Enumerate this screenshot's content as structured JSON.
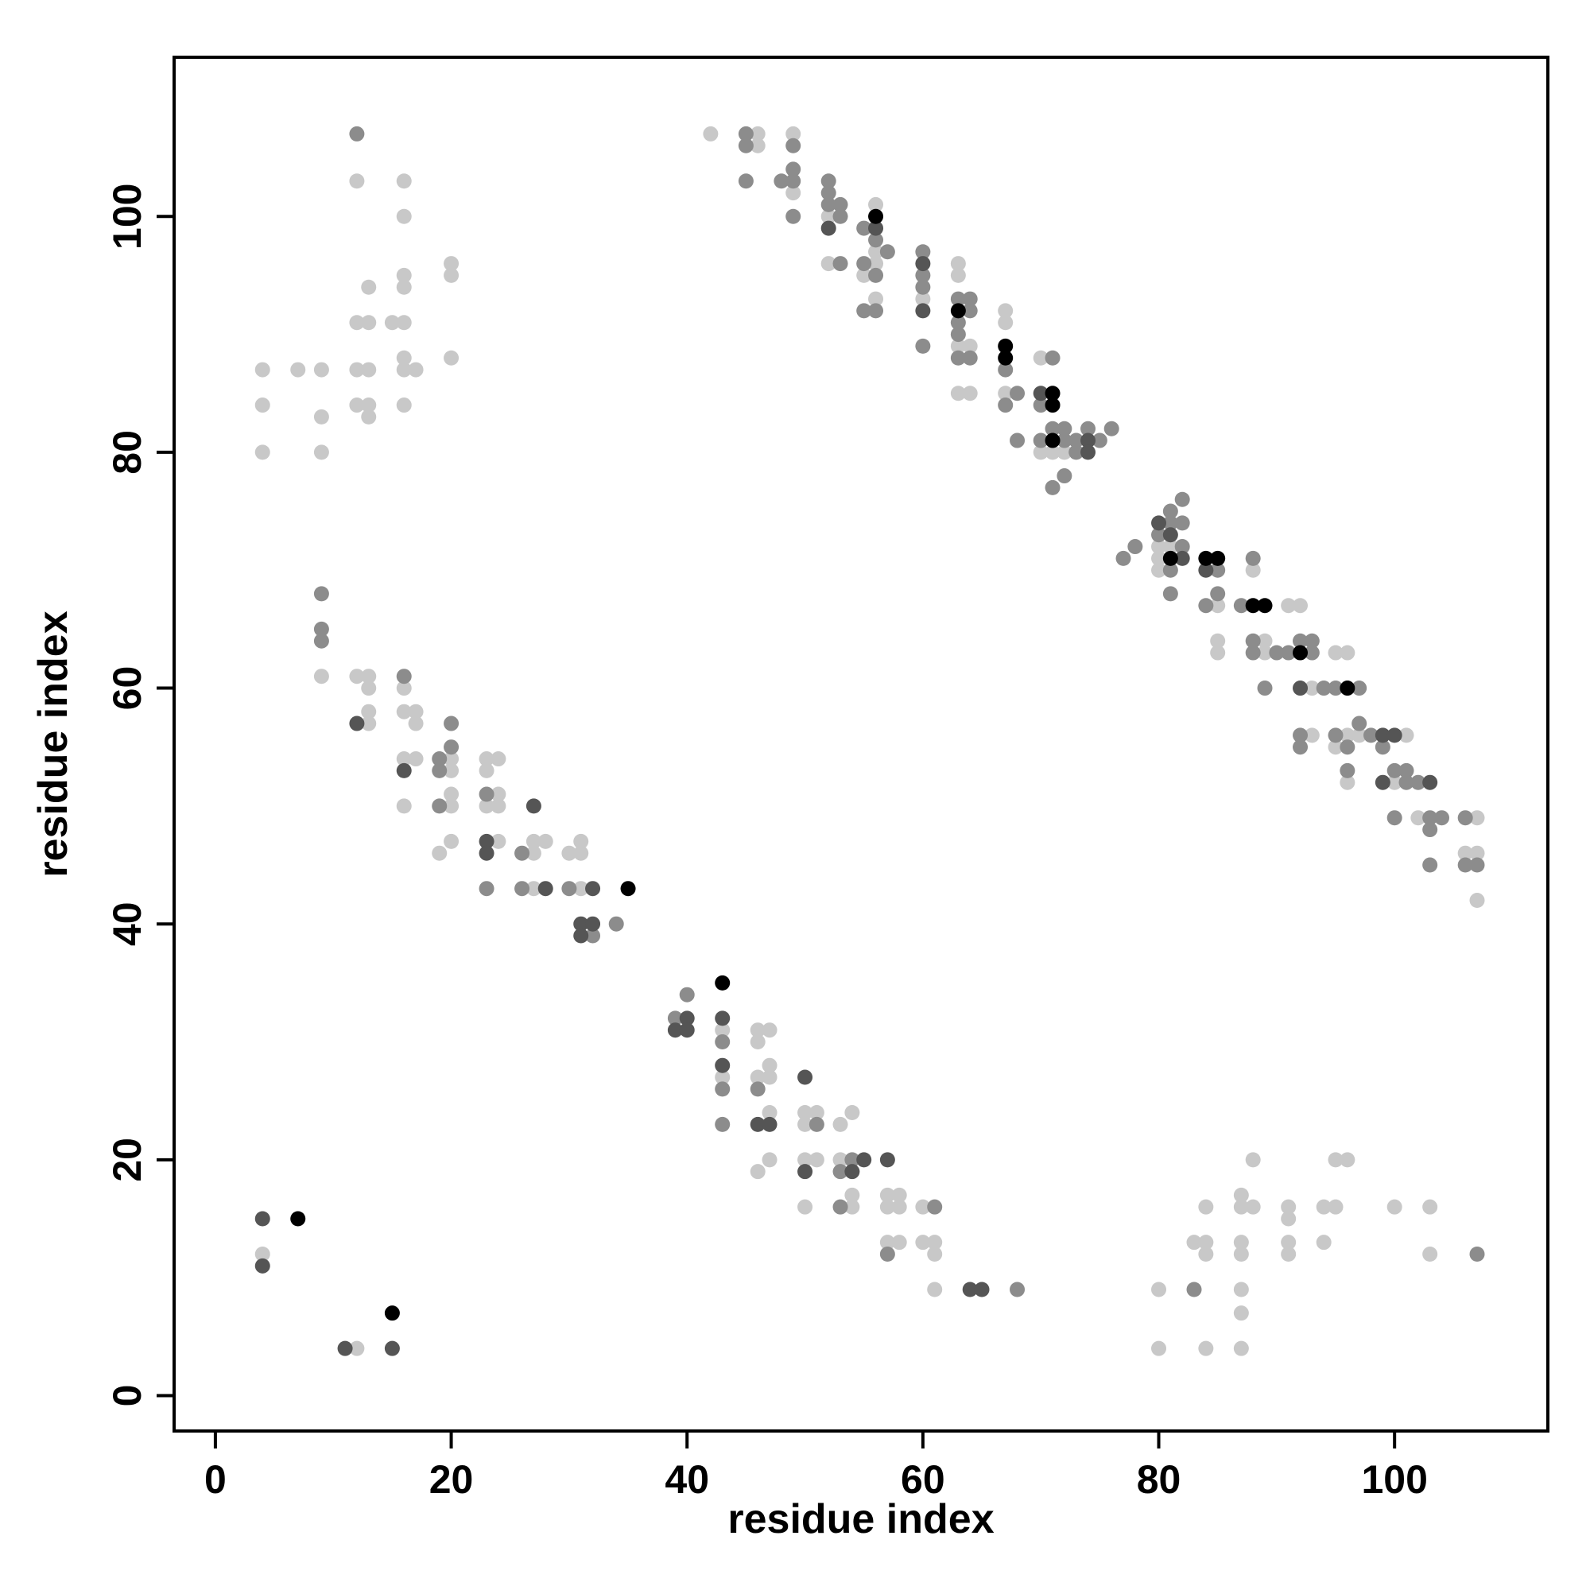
{
  "chart_data": {
    "type": "scatter",
    "title": "",
    "xlabel": "residue index",
    "ylabel": "residue index",
    "xlim": [
      -3.5,
      113
    ],
    "ylim": [
      -3,
      113.5
    ],
    "x_ticks": [
      0,
      20,
      40,
      60,
      80,
      100
    ],
    "y_ticks": [
      0,
      20,
      40,
      60,
      80,
      100
    ],
    "grid": false,
    "legend": "none",
    "point_colors": {
      "1": "#c8c8c8",
      "2": "#8c8c8c",
      "3": "#555555",
      "4": "#000000"
    },
    "points": [
      [
        4,
        87,
        1
      ],
      [
        4,
        84,
        1
      ],
      [
        4,
        80,
        1
      ],
      [
        7,
        87,
        1
      ],
      [
        9,
        87,
        1
      ],
      [
        9,
        83,
        1
      ],
      [
        9,
        80,
        1
      ],
      [
        12,
        107,
        2
      ],
      [
        12,
        103,
        1
      ],
      [
        12,
        91,
        1
      ],
      [
        12,
        87,
        1
      ],
      [
        12,
        84,
        1
      ],
      [
        13,
        94,
        1
      ],
      [
        13,
        91,
        1
      ],
      [
        13,
        87,
        1
      ],
      [
        13,
        84,
        1
      ],
      [
        13,
        83,
        1
      ],
      [
        15,
        91,
        1
      ],
      [
        16,
        103,
        1
      ],
      [
        16,
        100,
        1
      ],
      [
        16,
        95,
        1
      ],
      [
        16,
        94,
        1
      ],
      [
        16,
        91,
        1
      ],
      [
        16,
        88,
        1
      ],
      [
        16,
        87,
        1
      ],
      [
        16,
        84,
        1
      ],
      [
        17,
        87,
        1
      ],
      [
        20,
        96,
        1
      ],
      [
        20,
        95,
        1
      ],
      [
        20,
        88,
        1
      ],
      [
        9,
        68,
        2
      ],
      [
        9,
        65,
        2
      ],
      [
        9,
        64,
        2
      ],
      [
        9,
        61,
        1
      ],
      [
        12,
        61,
        1
      ],
      [
        12,
        57,
        3
      ],
      [
        13,
        61,
        1
      ],
      [
        13,
        60,
        1
      ],
      [
        13,
        58,
        1
      ],
      [
        13,
        57,
        1
      ],
      [
        16,
        61,
        2
      ],
      [
        16,
        60,
        1
      ],
      [
        16,
        58,
        1
      ],
      [
        16,
        54,
        1
      ],
      [
        16,
        53,
        3
      ],
      [
        16,
        50,
        1
      ],
      [
        17,
        58,
        1
      ],
      [
        17,
        57,
        1
      ],
      [
        17,
        54,
        1
      ],
      [
        19,
        54,
        2
      ],
      [
        19,
        53,
        2
      ],
      [
        19,
        50,
        2
      ],
      [
        19,
        46,
        1
      ],
      [
        20,
        57,
        2
      ],
      [
        20,
        55,
        2
      ],
      [
        20,
        54,
        1
      ],
      [
        20,
        53,
        1
      ],
      [
        20,
        51,
        1
      ],
      [
        20,
        50,
        1
      ],
      [
        20,
        47,
        1
      ],
      [
        23,
        54,
        1
      ],
      [
        23,
        53,
        1
      ],
      [
        23,
        51,
        2
      ],
      [
        23,
        50,
        1
      ],
      [
        23,
        47,
        3
      ],
      [
        23,
        46,
        3
      ],
      [
        23,
        43,
        2
      ],
      [
        24,
        54,
        1
      ],
      [
        24,
        51,
        1
      ],
      [
        24,
        50,
        1
      ],
      [
        24,
        47,
        1
      ],
      [
        26,
        46,
        2
      ],
      [
        26,
        43,
        2
      ],
      [
        27,
        50,
        3
      ],
      [
        27,
        47,
        1
      ],
      [
        27,
        46,
        1
      ],
      [
        27,
        43,
        1
      ],
      [
        28,
        47,
        1
      ],
      [
        28,
        43,
        3
      ],
      [
        30,
        46,
        1
      ],
      [
        30,
        43,
        2
      ],
      [
        31,
        47,
        1
      ],
      [
        31,
        46,
        1
      ],
      [
        31,
        43,
        1
      ],
      [
        31,
        40,
        3
      ],
      [
        31,
        39,
        3
      ],
      [
        32,
        43,
        3
      ],
      [
        32,
        40,
        3
      ],
      [
        32,
        39,
        2
      ],
      [
        34,
        40,
        2
      ],
      [
        35,
        43,
        4
      ],
      [
        39,
        32,
        2
      ],
      [
        39,
        31,
        3
      ],
      [
        40,
        34,
        2
      ],
      [
        40,
        32,
        3
      ],
      [
        40,
        31,
        3
      ],
      [
        43,
        35,
        4
      ],
      [
        43,
        32,
        3
      ],
      [
        43,
        31,
        1
      ],
      [
        43,
        30,
        2
      ],
      [
        43,
        28,
        3
      ],
      [
        43,
        27,
        1
      ],
      [
        43,
        26,
        2
      ],
      [
        43,
        23,
        2
      ],
      [
        46,
        31,
        1
      ],
      [
        46,
        30,
        1
      ],
      [
        46,
        27,
        1
      ],
      [
        46,
        26,
        2
      ],
      [
        46,
        23,
        3
      ],
      [
        46,
        19,
        1
      ],
      [
        47,
        31,
        1
      ],
      [
        47,
        28,
        1
      ],
      [
        47,
        27,
        1
      ],
      [
        47,
        24,
        1
      ],
      [
        47,
        23,
        3
      ],
      [
        47,
        20,
        1
      ],
      [
        50,
        27,
        3
      ],
      [
        50,
        24,
        1
      ],
      [
        50,
        23,
        1
      ],
      [
        50,
        20,
        1
      ],
      [
        50,
        19,
        3
      ],
      [
        50,
        16,
        1
      ],
      [
        51,
        24,
        1
      ],
      [
        51,
        23,
        2
      ],
      [
        51,
        20,
        1
      ],
      [
        53,
        23,
        1
      ],
      [
        53,
        20,
        1
      ],
      [
        53,
        19,
        2
      ],
      [
        53,
        16,
        2
      ],
      [
        54,
        24,
        1
      ],
      [
        54,
        20,
        2
      ],
      [
        54,
        19,
        3
      ],
      [
        54,
        17,
        1
      ],
      [
        54,
        16,
        1
      ],
      [
        55,
        20,
        3
      ],
      [
        57,
        20,
        3
      ],
      [
        57,
        17,
        1
      ],
      [
        57,
        16,
        1
      ],
      [
        57,
        13,
        1
      ],
      [
        57,
        12,
        2
      ],
      [
        58,
        17,
        1
      ],
      [
        58,
        16,
        1
      ],
      [
        58,
        13,
        1
      ],
      [
        60,
        16,
        1
      ],
      [
        60,
        13,
        1
      ],
      [
        61,
        16,
        2
      ],
      [
        61,
        13,
        1
      ],
      [
        61,
        12,
        1
      ],
      [
        61,
        9,
        1
      ],
      [
        64,
        9,
        3
      ],
      [
        65,
        9,
        3
      ],
      [
        68,
        9,
        2
      ],
      [
        4,
        15,
        3
      ],
      [
        4,
        12,
        1
      ],
      [
        4,
        11,
        3
      ],
      [
        7,
        15,
        4
      ],
      [
        11,
        4,
        3
      ],
      [
        12,
        4,
        1
      ],
      [
        15,
        7,
        4
      ],
      [
        15,
        4,
        3
      ],
      [
        80,
        9,
        1
      ],
      [
        80,
        4,
        1
      ],
      [
        83,
        13,
        1
      ],
      [
        83,
        9,
        2
      ],
      [
        84,
        16,
        1
      ],
      [
        84,
        13,
        1
      ],
      [
        84,
        12,
        1
      ],
      [
        84,
        4,
        1
      ],
      [
        87,
        17,
        1
      ],
      [
        87,
        16,
        1
      ],
      [
        87,
        13,
        1
      ],
      [
        87,
        12,
        1
      ],
      [
        87,
        9,
        1
      ],
      [
        87,
        7,
        1
      ],
      [
        87,
        4,
        1
      ],
      [
        88,
        20,
        1
      ],
      [
        88,
        16,
        1
      ],
      [
        91,
        16,
        1
      ],
      [
        91,
        15,
        1
      ],
      [
        91,
        13,
        1
      ],
      [
        91,
        12,
        1
      ],
      [
        94,
        16,
        1
      ],
      [
        94,
        13,
        1
      ],
      [
        95,
        20,
        1
      ],
      [
        95,
        16,
        1
      ],
      [
        96,
        20,
        1
      ],
      [
        100,
        16,
        1
      ],
      [
        103,
        16,
        1
      ],
      [
        103,
        12,
        1
      ],
      [
        107,
        12,
        2
      ],
      [
        42,
        107,
        1
      ],
      [
        45,
        107,
        2
      ],
      [
        45,
        106,
        2
      ],
      [
        45,
        103,
        2
      ],
      [
        46,
        107,
        1
      ],
      [
        46,
        106,
        1
      ],
      [
        48,
        103,
        2
      ],
      [
        49,
        107,
        1
      ],
      [
        49,
        106,
        2
      ],
      [
        49,
        104,
        2
      ],
      [
        49,
        103,
        2
      ],
      [
        49,
        102,
        1
      ],
      [
        49,
        100,
        2
      ],
      [
        52,
        103,
        2
      ],
      [
        52,
        102,
        2
      ],
      [
        52,
        101,
        2
      ],
      [
        52,
        100,
        1
      ],
      [
        52,
        99,
        3
      ],
      [
        52,
        96,
        1
      ],
      [
        53,
        101,
        2
      ],
      [
        53,
        100,
        2
      ],
      [
        53,
        96,
        2
      ],
      [
        55,
        99,
        2
      ],
      [
        55,
        96,
        2
      ],
      [
        55,
        95,
        1
      ],
      [
        55,
        92,
        2
      ],
      [
        56,
        101,
        1
      ],
      [
        56,
        100,
        4
      ],
      [
        56,
        99,
        3
      ],
      [
        56,
        98,
        2
      ],
      [
        56,
        97,
        1
      ],
      [
        56,
        96,
        1
      ],
      [
        56,
        95,
        2
      ],
      [
        56,
        93,
        1
      ],
      [
        56,
        92,
        2
      ],
      [
        57,
        97,
        2
      ],
      [
        60,
        97,
        2
      ],
      [
        60,
        96,
        3
      ],
      [
        60,
        95,
        2
      ],
      [
        60,
        94,
        2
      ],
      [
        60,
        93,
        1
      ],
      [
        60,
        92,
        3
      ],
      [
        60,
        89,
        2
      ],
      [
        63,
        96,
        1
      ],
      [
        63,
        95,
        1
      ],
      [
        63,
        93,
        2
      ],
      [
        63,
        92,
        4
      ],
      [
        63,
        91,
        2
      ],
      [
        63,
        90,
        2
      ],
      [
        63,
        89,
        1
      ],
      [
        63,
        88,
        2
      ],
      [
        63,
        85,
        1
      ],
      [
        64,
        93,
        2
      ],
      [
        64,
        92,
        2
      ],
      [
        64,
        89,
        1
      ],
      [
        64,
        88,
        2
      ],
      [
        64,
        85,
        1
      ],
      [
        67,
        92,
        1
      ],
      [
        67,
        91,
        1
      ],
      [
        67,
        89,
        4
      ],
      [
        67,
        88,
        4
      ],
      [
        67,
        87,
        2
      ],
      [
        67,
        85,
        1
      ],
      [
        67,
        84,
        2
      ],
      [
        68,
        85,
        2
      ],
      [
        68,
        81,
        2
      ],
      [
        70,
        88,
        1
      ],
      [
        70,
        85,
        3
      ],
      [
        70,
        84,
        2
      ],
      [
        70,
        81,
        2
      ],
      [
        70,
        80,
        1
      ],
      [
        71,
        88,
        2
      ],
      [
        71,
        85,
        4
      ],
      [
        71,
        84,
        4
      ],
      [
        71,
        82,
        2
      ],
      [
        71,
        81,
        4
      ],
      [
        71,
        80,
        1
      ],
      [
        71,
        77,
        2
      ],
      [
        72,
        82,
        2
      ],
      [
        72,
        81,
        2
      ],
      [
        72,
        80,
        1
      ],
      [
        72,
        78,
        2
      ],
      [
        73,
        81,
        2
      ],
      [
        73,
        80,
        2
      ],
      [
        74,
        82,
        2
      ],
      [
        74,
        81,
        3
      ],
      [
        74,
        80,
        3
      ],
      [
        75,
        81,
        2
      ],
      [
        76,
        82,
        2
      ],
      [
        77,
        71,
        2
      ],
      [
        78,
        72,
        2
      ],
      [
        80,
        74,
        3
      ],
      [
        80,
        73,
        2
      ],
      [
        80,
        72,
        1
      ],
      [
        80,
        71,
        1
      ],
      [
        80,
        70,
        1
      ],
      [
        81,
        75,
        2
      ],
      [
        81,
        74,
        2
      ],
      [
        81,
        73,
        3
      ],
      [
        81,
        72,
        1
      ],
      [
        81,
        71,
        4
      ],
      [
        81,
        70,
        2
      ],
      [
        81,
        68,
        2
      ],
      [
        82,
        76,
        2
      ],
      [
        82,
        74,
        2
      ],
      [
        82,
        72,
        2
      ],
      [
        82,
        71,
        3
      ],
      [
        84,
        71,
        4
      ],
      [
        84,
        70,
        3
      ],
      [
        84,
        67,
        2
      ],
      [
        85,
        71,
        4
      ],
      [
        85,
        70,
        2
      ],
      [
        85,
        68,
        2
      ],
      [
        85,
        67,
        1
      ],
      [
        85,
        64,
        1
      ],
      [
        85,
        63,
        1
      ],
      [
        87,
        67,
        2
      ],
      [
        88,
        71,
        2
      ],
      [
        88,
        70,
        1
      ],
      [
        88,
        67,
        4
      ],
      [
        88,
        64,
        2
      ],
      [
        88,
        63,
        2
      ],
      [
        89,
        67,
        4
      ],
      [
        89,
        64,
        1
      ],
      [
        89,
        63,
        1
      ],
      [
        89,
        60,
        2
      ],
      [
        90,
        63,
        2
      ],
      [
        91,
        67,
        1
      ],
      [
        91,
        63,
        2
      ],
      [
        92,
        67,
        1
      ],
      [
        92,
        64,
        2
      ],
      [
        92,
        63,
        4
      ],
      [
        92,
        60,
        3
      ],
      [
        92,
        56,
        2
      ],
      [
        92,
        55,
        2
      ],
      [
        93,
        64,
        2
      ],
      [
        93,
        63,
        2
      ],
      [
        93,
        60,
        1
      ],
      [
        93,
        56,
        1
      ],
      [
        94,
        60,
        2
      ],
      [
        95,
        63,
        1
      ],
      [
        95,
        60,
        2
      ],
      [
        95,
        56,
        2
      ],
      [
        95,
        55,
        1
      ],
      [
        96,
        63,
        1
      ],
      [
        96,
        60,
        4
      ],
      [
        96,
        56,
        1
      ],
      [
        96,
        55,
        2
      ],
      [
        96,
        53,
        2
      ],
      [
        96,
        52,
        1
      ],
      [
        97,
        60,
        2
      ],
      [
        97,
        57,
        2
      ],
      [
        97,
        56,
        1
      ],
      [
        98,
        56,
        2
      ],
      [
        99,
        56,
        3
      ],
      [
        99,
        55,
        2
      ],
      [
        99,
        52,
        3
      ],
      [
        100,
        56,
        3
      ],
      [
        100,
        53,
        2
      ],
      [
        100,
        52,
        1
      ],
      [
        100,
        49,
        2
      ],
      [
        101,
        56,
        1
      ],
      [
        101,
        53,
        2
      ],
      [
        101,
        52,
        2
      ],
      [
        102,
        52,
        2
      ],
      [
        102,
        49,
        1
      ],
      [
        103,
        52,
        3
      ],
      [
        103,
        49,
        2
      ],
      [
        103,
        48,
        2
      ],
      [
        103,
        45,
        2
      ],
      [
        104,
        49,
        2
      ],
      [
        106,
        49,
        2
      ],
      [
        106,
        46,
        1
      ],
      [
        106,
        45,
        2
      ],
      [
        107,
        49,
        1
      ],
      [
        107,
        46,
        1
      ],
      [
        107,
        45,
        2
      ],
      [
        107,
        42,
        1
      ]
    ]
  }
}
